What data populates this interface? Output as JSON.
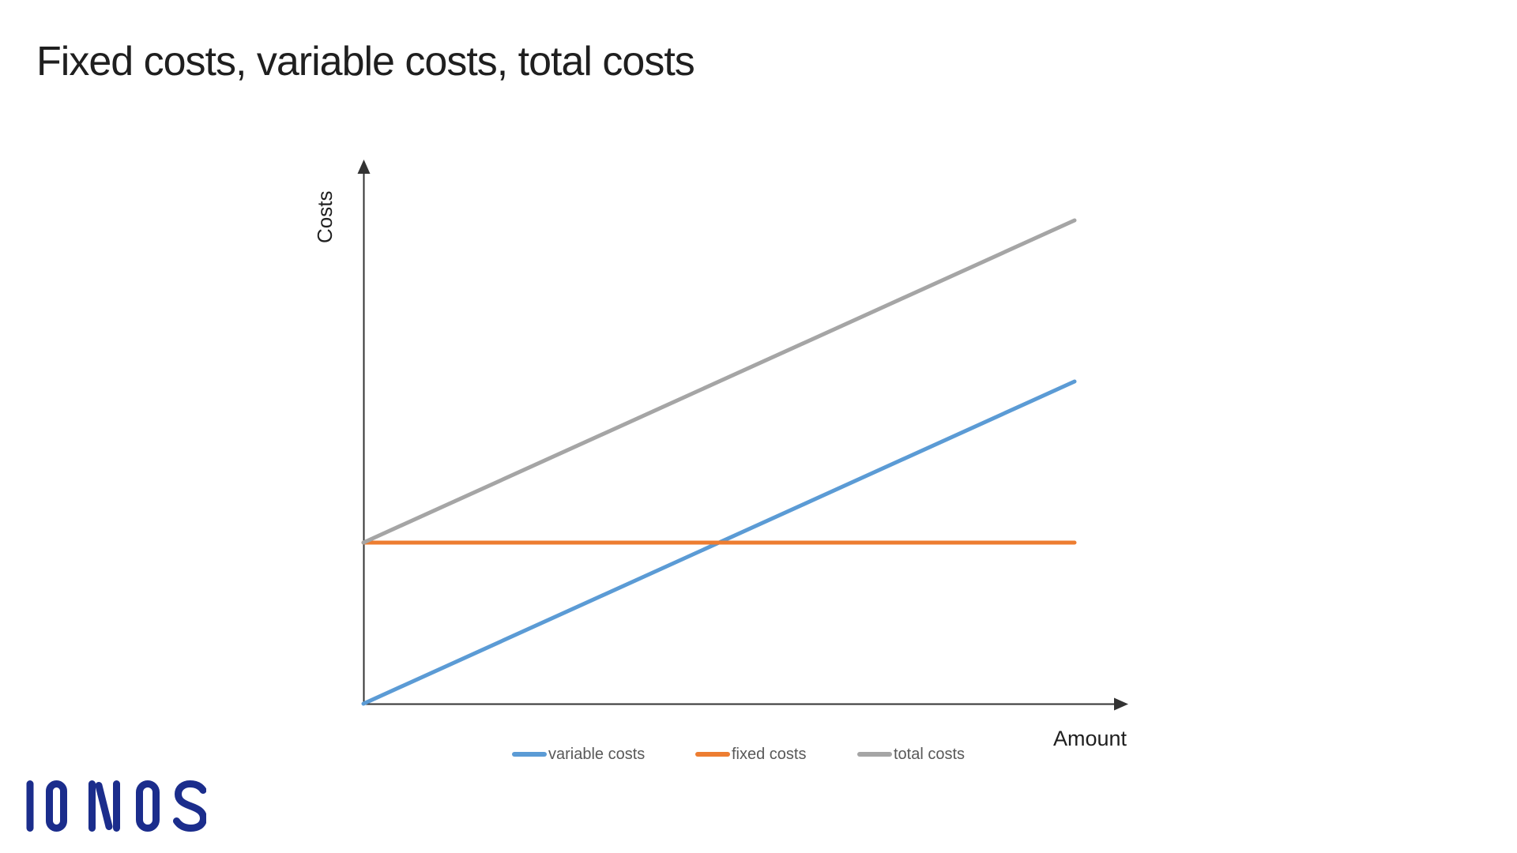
{
  "page": {
    "title": "Fixed costs, variable costs, total costs",
    "brand": {
      "name": "IONOS",
      "color": "#1B2D8C"
    }
  },
  "chart_data": {
    "type": "line",
    "title": "Fixed costs, variable costs, total costs",
    "xlabel": "Amount",
    "ylabel": "Costs",
    "x": [
      0,
      10
    ],
    "series": [
      {
        "name": "variable costs",
        "color": "#5B9BD5",
        "values": [
          0,
          40
        ]
      },
      {
        "name": "fixed costs",
        "color": "#ED7D31",
        "values": [
          20,
          20
        ]
      },
      {
        "name": "total costs",
        "color": "#A5A5A5",
        "values": [
          20,
          60
        ]
      }
    ],
    "xlim": [
      0,
      10
    ],
    "ylim": [
      0,
      70
    ],
    "grid": false,
    "ticks": "none",
    "axis_style": "arrow axes without tick labels",
    "legend_position": "bottom",
    "line_width": 5,
    "axis_color": "#333333",
    "axis_title_color": "#1F1F1F",
    "legend_text_color": "#595959",
    "notes": "total costs = fixed costs + variable costs; variable costs start at origin; fixed costs constant; total costs parallel to variable costs starting at fixed-cost level"
  }
}
